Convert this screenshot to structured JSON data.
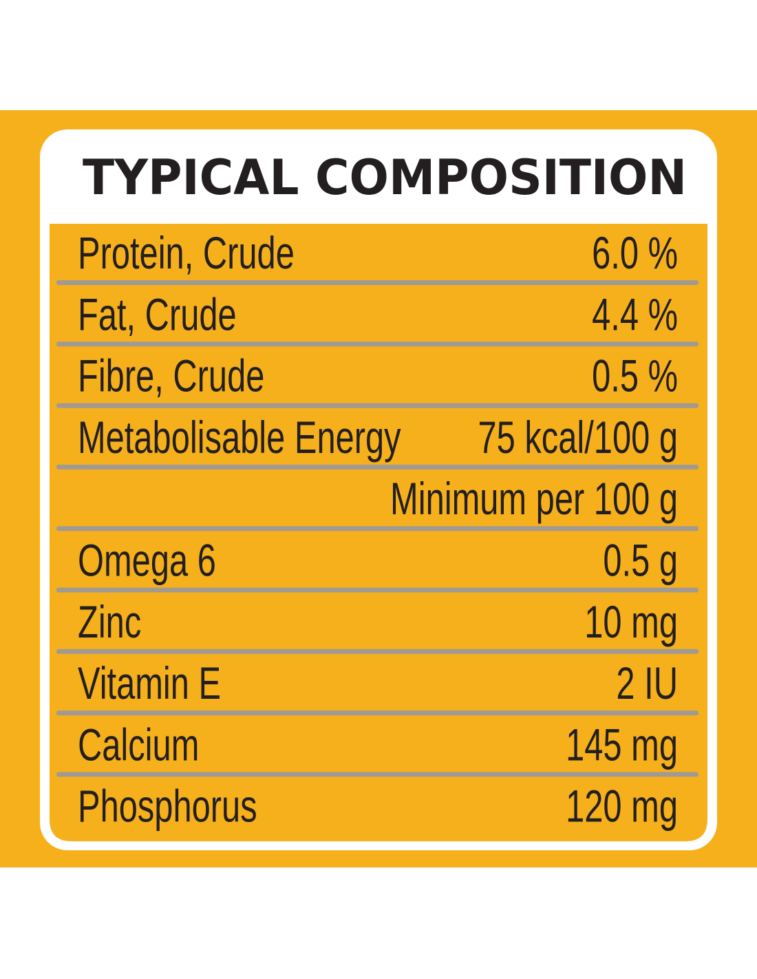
{
  "title": "TYPICAL COMPOSITION",
  "groups": [
    {
      "rows": [
        [
          "Protein, Crude",
          "6.0 %"
        ],
        [
          "Fat, Crude",
          "4.4 %"
        ],
        [
          "Fibre, Crude",
          "0.5 %"
        ],
        [
          "Metabolisable Energy",
          "75 kcal/100 g"
        ]
      ]
    },
    {
      "heading": "Minimum per 100 g",
      "rows": [
        [
          "Omega 6",
          "0.5 g"
        ],
        [
          "Zinc",
          "10 mg"
        ],
        [
          "Vitamin E",
          "2 IU"
        ],
        [
          "Calcium",
          "145 mg"
        ],
        [
          "Phosphorus",
          "120 mg"
        ]
      ]
    }
  ]
}
